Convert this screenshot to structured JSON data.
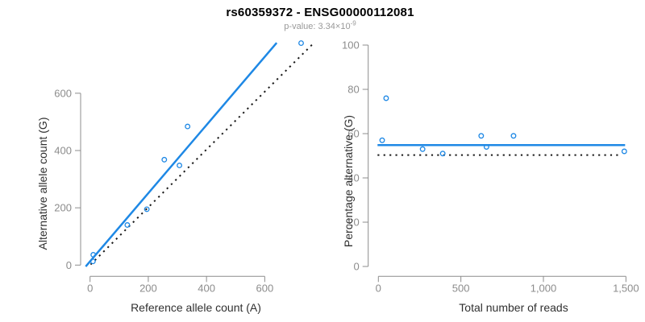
{
  "header": {
    "title": "rs60359372 - ENSG00000112081",
    "pvalue_text": "p-value: 3.34×10",
    "pvalue_exponent": "-9"
  },
  "colors": {
    "accent_blue": "#1E88E5",
    "axis_gray": "#8C8C8C",
    "tick_label_gray": "#8C8C8C",
    "axis_title_color": "#303030",
    "dotted_line_black": "#1A1A1A",
    "subtitle_gray": "#999999",
    "background": "#FFFFFF"
  },
  "chart_data": [
    {
      "type": "scatter",
      "panel": "left",
      "xlabel": "Reference allele count (A)",
      "ylabel": "Alternative allele count (G)",
      "xticks": [
        0,
        200,
        400,
        600
      ],
      "xtick_labels": [
        "0",
        "200",
        "400",
        "600"
      ],
      "yticks": [
        0,
        200,
        400,
        600
      ],
      "ytick_labels": [
        "0",
        "200",
        "400",
        "600"
      ],
      "xlim": [
        -20,
        780
      ],
      "ylim": [
        -20,
        790
      ],
      "grid": false,
      "legend": "none",
      "points": [
        [
          10,
          13
        ],
        [
          11,
          36
        ],
        [
          128,
          140
        ],
        [
          195,
          195
        ],
        [
          255,
          368
        ],
        [
          307,
          348
        ],
        [
          335,
          484
        ],
        [
          725,
          775
        ]
      ],
      "lines": [
        {
          "name": "regression-fit-line",
          "style": "solid",
          "color": "#1E88E5",
          "x1": -15,
          "y1": -5,
          "x2": 641,
          "y2": 776
        },
        {
          "name": "identity-line",
          "style": "dotted",
          "color": "#1A1A1A",
          "x1": 2,
          "y1": 2,
          "x2": 770,
          "y2": 777
        }
      ]
    },
    {
      "type": "scatter",
      "panel": "right",
      "xlabel": "Total number of reads",
      "ylabel": "Percentage alternative (G)",
      "xticks": [
        0,
        500,
        1000,
        1500
      ],
      "xtick_labels": [
        "0",
        "500",
        "1,000",
        "1,500"
      ],
      "yticks": [
        0,
        20,
        40,
        60,
        80,
        100
      ],
      "ytick_labels": [
        "0",
        "20",
        "40",
        "60",
        "80",
        "100"
      ],
      "xlim": [
        -20,
        1520
      ],
      "ylim": [
        0,
        100
      ],
      "grid": false,
      "legend": "none",
      "points": [
        [
          23,
          57
        ],
        [
          47,
          76
        ],
        [
          268,
          53
        ],
        [
          390,
          51
        ],
        [
          623,
          59
        ],
        [
          655,
          54
        ],
        [
          819,
          59
        ],
        [
          1490,
          52
        ]
      ],
      "lines": [
        {
          "name": "mean-percentage-line",
          "style": "solid",
          "color": "#1E88E5",
          "x1": -5,
          "y1": 54.8,
          "x2": 1495,
          "y2": 54.8
        },
        {
          "name": "fifty-percent-line",
          "style": "dotted",
          "color": "#1A1A1A",
          "x1": -5,
          "y1": 50.3,
          "x2": 1465,
          "y2": 50.3
        }
      ]
    }
  ]
}
